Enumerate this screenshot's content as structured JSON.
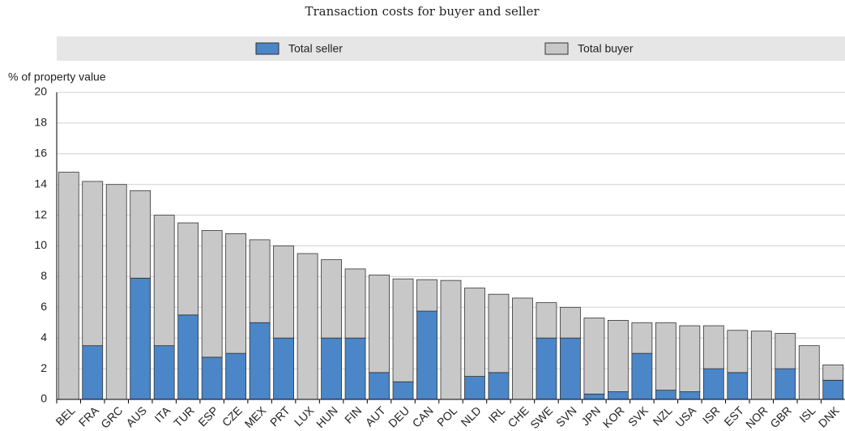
{
  "chart_data": {
    "type": "stacked_bar",
    "title": "Transaction costs for buyer and seller",
    "y_label": "% of property value",
    "categories": [
      "BEL",
      "FRA",
      "GRC",
      "AUS",
      "ITA",
      "TUR",
      "ESP",
      "CZE",
      "MEX",
      "PRT",
      "LUX",
      "HUN",
      "FIN",
      "AUT",
      "DEU",
      "CAN",
      "POL",
      "NLD",
      "IRL",
      "CHE",
      "SWE",
      "SVN",
      "JPN",
      "KOR",
      "SVK",
      "NZL",
      "USA",
      "ISR",
      "EST",
      "NOR",
      "GBR",
      "ISL",
      "DNK"
    ],
    "series": [
      {
        "name": "Total seller",
        "color": "#4a86c8",
        "values": [
          0,
          3.5,
          0,
          7.9,
          3.5,
          5.5,
          2.75,
          3.0,
          5.0,
          4.0,
          0,
          4.0,
          4.0,
          1.75,
          1.15,
          5.75,
          0,
          1.5,
          1.75,
          0,
          4.0,
          4.0,
          0.35,
          0.5,
          3.0,
          0.6,
          0.5,
          2.0,
          1.75,
          0,
          2.0,
          0,
          1.25
        ]
      },
      {
        "name": "Total buyer",
        "color": "#c8c8c8",
        "values": [
          14.8,
          10.7,
          14.0,
          5.7,
          8.5,
          6.0,
          8.25,
          7.8,
          5.4,
          6.0,
          9.5,
          5.1,
          4.5,
          6.35,
          6.7,
          2.05,
          7.75,
          5.75,
          5.1,
          6.6,
          2.3,
          2.0,
          4.95,
          4.65,
          2.0,
          4.4,
          4.3,
          2.8,
          2.75,
          4.45,
          2.3,
          3.5,
          1.0
        ]
      }
    ],
    "ylim": [
      0,
      20
    ],
    "yticks": [
      0,
      2,
      4,
      6,
      8,
      10,
      12,
      14,
      16,
      18,
      20
    ],
    "grid": true,
    "legend": "top"
  }
}
